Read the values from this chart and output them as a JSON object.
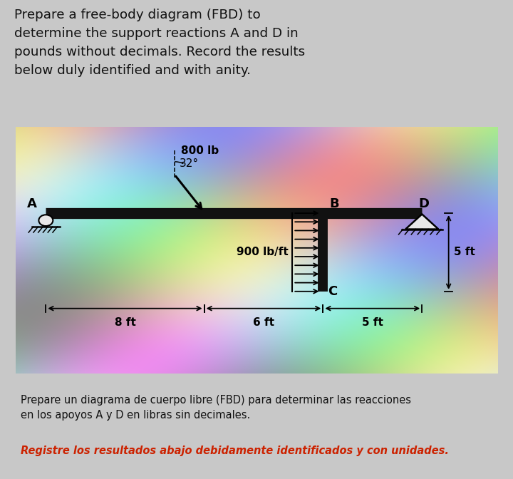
{
  "title_text": "Prepare a free-body diagram (FBD) to\ndetermine the support reactions A and D in\npounds without decimals. Record the results\nbelow duly identified and with anity.",
  "subtitle1": "Prepare un diagrama de cuerpo libre (FBD) para determinar las reacciones\nen los apoyos A y D en libras sin decimales.",
  "subtitle2": "Registre los resultados abajo debidamente identificados y con unidades.",
  "text_color": "#111111",
  "red_text": "#cc2200",
  "force_800": "800 lb",
  "angle_label": "32°",
  "dist_load": "900 lb/ft",
  "dim_left": "8 ft",
  "dim_mid": "6 ft",
  "dim_right": "5 ft",
  "dim_vert": "5 ft",
  "label_A": "A",
  "label_B": "B",
  "label_C": "C",
  "label_D": "D",
  "beam_color": "#111111",
  "title_bg": "#f0f0f0",
  "bottom_bg": "#c8c8c8"
}
